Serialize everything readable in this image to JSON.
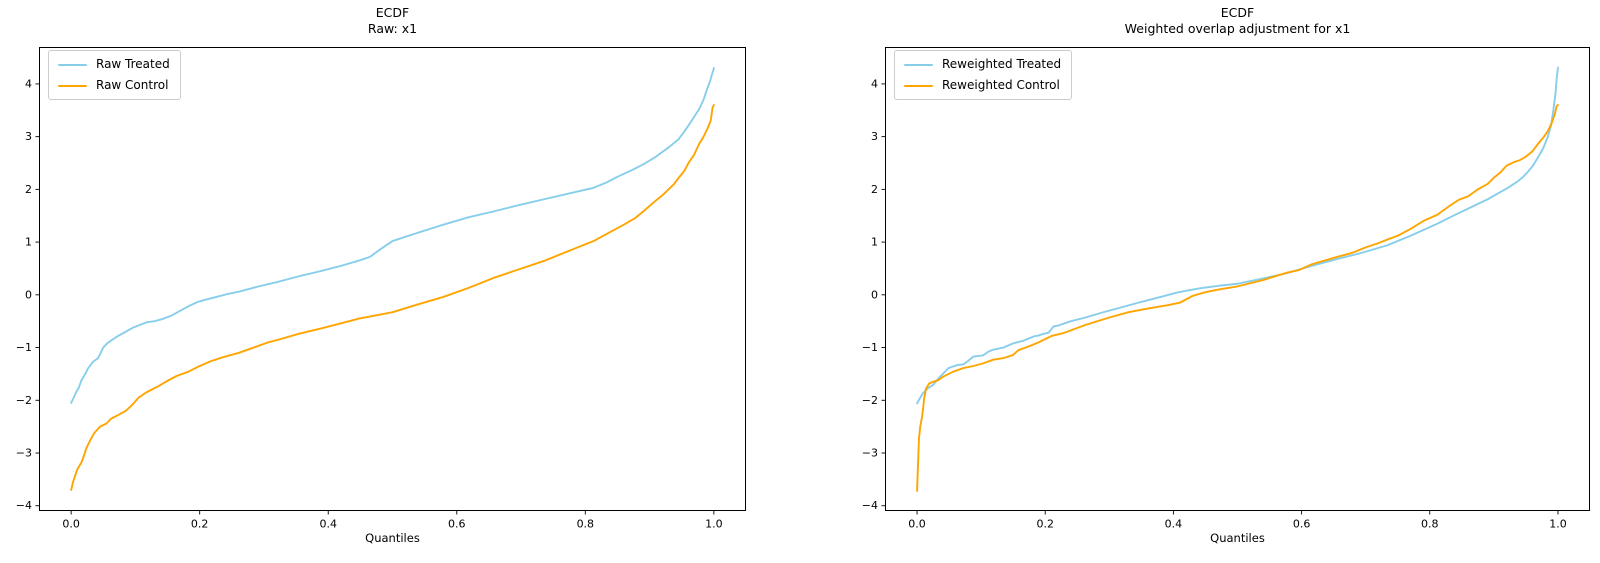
{
  "figure": {
    "background": "#ffffff",
    "text_color": "#000000",
    "spine_color": "#000000"
  },
  "chart_data": [
    {
      "type": "line",
      "title": "ECDF",
      "subtitle": "Raw: x1",
      "xlabel": "Quantiles",
      "ylabel": "",
      "xlim": [
        -0.05,
        1.05
      ],
      "ylim": [
        -4.1,
        4.7
      ],
      "grid": false,
      "legend_position": "upper left",
      "x_ticks": [
        0.0,
        0.2,
        0.4,
        0.6,
        0.8,
        1.0
      ],
      "x_tick_labels": [
        "0.0",
        "0.2",
        "0.4",
        "0.6",
        "0.8",
        "1.0"
      ],
      "y_ticks": [
        -4,
        -3,
        -2,
        -1,
        0,
        1,
        2,
        3,
        4
      ],
      "y_tick_labels": [
        "−4",
        "−3",
        "−2",
        "−1",
        "0",
        "1",
        "2",
        "3",
        "4"
      ],
      "series": [
        {
          "name": "Raw Treated",
          "color": "#87CEEB",
          "x": [
            0.0,
            0.004,
            0.008,
            0.012,
            0.016,
            0.022,
            0.026,
            0.034,
            0.042,
            0.05,
            0.056,
            0.064,
            0.073,
            0.085,
            0.095,
            0.105,
            0.118,
            0.13,
            0.142,
            0.155,
            0.167,
            0.182,
            0.198,
            0.213,
            0.229,
            0.245,
            0.261,
            0.292,
            0.323,
            0.354,
            0.385,
            0.417,
            0.448,
            0.465,
            0.483,
            0.5,
            0.54,
            0.579,
            0.618,
            0.657,
            0.696,
            0.735,
            0.774,
            0.813,
            0.833,
            0.852,
            0.875,
            0.891,
            0.91,
            0.93,
            0.945,
            0.953,
            0.961,
            0.969,
            0.977,
            0.984,
            0.99,
            0.994,
            1.0
          ],
          "y": [
            -2.05,
            -1.95,
            -1.84,
            -1.76,
            -1.62,
            -1.5,
            -1.4,
            -1.27,
            -1.2,
            -1.0,
            -0.92,
            -0.85,
            -0.78,
            -0.7,
            -0.63,
            -0.58,
            -0.52,
            -0.5,
            -0.46,
            -0.4,
            -0.32,
            -0.22,
            -0.13,
            -0.08,
            -0.03,
            0.02,
            0.06,
            0.16,
            0.25,
            0.35,
            0.44,
            0.54,
            0.65,
            0.72,
            0.88,
            1.02,
            1.18,
            1.33,
            1.47,
            1.58,
            1.7,
            1.81,
            1.92,
            2.03,
            2.13,
            2.25,
            2.38,
            2.48,
            2.62,
            2.8,
            2.95,
            3.08,
            3.22,
            3.37,
            3.52,
            3.7,
            3.92,
            4.05,
            4.3
          ]
        },
        {
          "name": "Raw Control",
          "color": "#FFA500",
          "x": [
            0.0,
            0.003,
            0.006,
            0.01,
            0.016,
            0.02,
            0.024,
            0.03,
            0.036,
            0.045,
            0.055,
            0.062,
            0.073,
            0.085,
            0.094,
            0.105,
            0.117,
            0.125,
            0.136,
            0.15,
            0.164,
            0.182,
            0.2,
            0.217,
            0.237,
            0.261,
            0.284,
            0.307,
            0.323,
            0.354,
            0.385,
            0.417,
            0.448,
            0.479,
            0.5,
            0.54,
            0.579,
            0.618,
            0.657,
            0.696,
            0.735,
            0.774,
            0.813,
            0.84,
            0.86,
            0.877,
            0.891,
            0.906,
            0.922,
            0.938,
            0.946,
            0.954,
            0.961,
            0.969,
            0.977,
            0.984,
            0.99,
            0.995,
            0.998,
            1.0
          ],
          "y": [
            -3.7,
            -3.55,
            -3.44,
            -3.3,
            -3.18,
            -3.05,
            -2.9,
            -2.75,
            -2.62,
            -2.5,
            -2.44,
            -2.35,
            -2.28,
            -2.2,
            -2.1,
            -1.95,
            -1.85,
            -1.8,
            -1.73,
            -1.63,
            -1.54,
            -1.46,
            -1.35,
            -1.26,
            -1.18,
            -1.1,
            -1.0,
            -0.9,
            -0.85,
            -0.74,
            -0.65,
            -0.55,
            -0.45,
            -0.38,
            -0.33,
            -0.18,
            -0.04,
            0.13,
            0.32,
            0.48,
            0.64,
            0.83,
            1.02,
            1.2,
            1.33,
            1.45,
            1.59,
            1.75,
            1.91,
            2.1,
            2.23,
            2.35,
            2.51,
            2.65,
            2.86,
            3.0,
            3.15,
            3.3,
            3.55,
            3.6
          ]
        }
      ]
    },
    {
      "type": "line",
      "title": "ECDF",
      "subtitle": "Weighted overlap adjustment for x1",
      "xlabel": "Quantiles",
      "ylabel": "",
      "xlim": [
        -0.05,
        1.05
      ],
      "ylim": [
        -4.1,
        4.7
      ],
      "grid": false,
      "legend_position": "upper left",
      "x_ticks": [
        0.0,
        0.2,
        0.4,
        0.6,
        0.8,
        1.0
      ],
      "x_tick_labels": [
        "0.0",
        "0.2",
        "0.4",
        "0.6",
        "0.8",
        "1.0"
      ],
      "y_ticks": [
        -4,
        -3,
        -2,
        -1,
        0,
        1,
        2,
        3,
        4
      ],
      "y_tick_labels": [
        "−4",
        "−3",
        "−2",
        "−1",
        "0",
        "1",
        "2",
        "3",
        "4"
      ],
      "series": [
        {
          "name": "Reweighted Treated",
          "color": "#87CEEB",
          "x": [
            0.0,
            0.005,
            0.009,
            0.017,
            0.025,
            0.033,
            0.041,
            0.049,
            0.056,
            0.064,
            0.072,
            0.08,
            0.088,
            0.103,
            0.111,
            0.119,
            0.135,
            0.15,
            0.166,
            0.182,
            0.19,
            0.197,
            0.205,
            0.213,
            0.221,
            0.24,
            0.263,
            0.285,
            0.3,
            0.315,
            0.345,
            0.377,
            0.408,
            0.44,
            0.47,
            0.5,
            0.54,
            0.577,
            0.616,
            0.656,
            0.695,
            0.734,
            0.77,
            0.812,
            0.84,
            0.859,
            0.89,
            0.906,
            0.922,
            0.937,
            0.945,
            0.953,
            0.961,
            0.969,
            0.977,
            0.984,
            0.989,
            0.992,
            0.996,
            0.998,
            1.0
          ],
          "y": [
            -2.06,
            -1.95,
            -1.87,
            -1.77,
            -1.71,
            -1.59,
            -1.49,
            -1.39,
            -1.36,
            -1.33,
            -1.32,
            -1.25,
            -1.17,
            -1.15,
            -1.08,
            -1.04,
            -1.0,
            -0.92,
            -0.87,
            -0.79,
            -0.77,
            -0.74,
            -0.72,
            -0.6,
            -0.58,
            -0.5,
            -0.43,
            -0.35,
            -0.3,
            -0.25,
            -0.15,
            -0.05,
            0.05,
            0.12,
            0.17,
            0.21,
            0.31,
            0.41,
            0.55,
            0.68,
            0.8,
            0.94,
            1.12,
            1.35,
            1.52,
            1.63,
            1.81,
            1.92,
            2.03,
            2.15,
            2.23,
            2.33,
            2.45,
            2.61,
            2.78,
            2.99,
            3.2,
            3.43,
            3.8,
            4.1,
            4.31
          ]
        },
        {
          "name": "Reweighted Control",
          "color": "#FFA500",
          "x": [
            0.0,
            0.001,
            0.002,
            0.003,
            0.005,
            0.008,
            0.01,
            0.011,
            0.014,
            0.019,
            0.025,
            0.033,
            0.041,
            0.056,
            0.072,
            0.088,
            0.103,
            0.119,
            0.135,
            0.15,
            0.158,
            0.174,
            0.19,
            0.21,
            0.23,
            0.263,
            0.3,
            0.33,
            0.36,
            0.39,
            0.41,
            0.43,
            0.45,
            0.47,
            0.5,
            0.54,
            0.577,
            0.596,
            0.616,
            0.656,
            0.68,
            0.7,
            0.72,
            0.734,
            0.75,
            0.77,
            0.79,
            0.812,
            0.83,
            0.845,
            0.86,
            0.875,
            0.89,
            0.9,
            0.91,
            0.92,
            0.932,
            0.94,
            0.95,
            0.96,
            0.97,
            0.977,
            0.984,
            0.99,
            0.995,
            0.998,
            1.0
          ],
          "y": [
            -3.72,
            -3.4,
            -3.05,
            -2.72,
            -2.5,
            -2.3,
            -2.1,
            -1.97,
            -1.78,
            -1.68,
            -1.65,
            -1.62,
            -1.55,
            -1.46,
            -1.39,
            -1.35,
            -1.3,
            -1.23,
            -1.2,
            -1.14,
            -1.05,
            -0.98,
            -0.9,
            -0.78,
            -0.72,
            -0.57,
            -0.43,
            -0.33,
            -0.26,
            -0.2,
            -0.15,
            -0.02,
            0.05,
            0.1,
            0.16,
            0.28,
            0.42,
            0.47,
            0.58,
            0.72,
            0.8,
            0.9,
            0.98,
            1.05,
            1.12,
            1.25,
            1.4,
            1.52,
            1.68,
            1.8,
            1.87,
            2.0,
            2.1,
            2.22,
            2.32,
            2.45,
            2.52,
            2.55,
            2.62,
            2.72,
            2.88,
            2.98,
            3.1,
            3.25,
            3.42,
            3.58,
            3.6
          ]
        }
      ]
    }
  ]
}
